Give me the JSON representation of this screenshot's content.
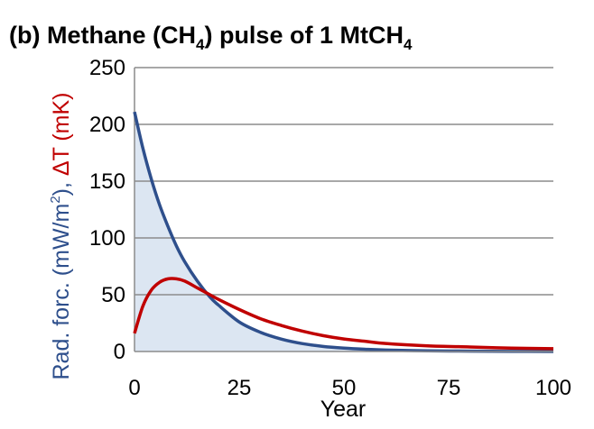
{
  "chart_data": {
    "type": "line",
    "title": {
      "prefix": "(b) Methane (CH",
      "sub1": "4",
      "middle": ") pulse of 1 MtCH",
      "sub2": "4"
    },
    "xlabel": "Year",
    "ylabel": {
      "part1": "Rad. forc. (mW/m",
      "sup": "2",
      "part2": "), ",
      "part3": "ΔT (mK)"
    },
    "xlim": [
      0,
      100
    ],
    "ylim": [
      0,
      250
    ],
    "x_ticks": [
      "0",
      "25",
      "50",
      "75",
      "100"
    ],
    "y_ticks": [
      "0",
      "50",
      "100",
      "150",
      "200",
      "250"
    ],
    "grid": "horizontal",
    "colors": {
      "forcing": "#2e4f8c",
      "temperature": "#c00000",
      "fill": "#dce6f2",
      "grid": "#8c8c8c"
    },
    "series": [
      {
        "key": "radiative_forcing",
        "filled": true,
        "x": [
          0,
          2,
          4,
          6,
          8,
          10,
          12,
          15,
          18,
          20,
          25,
          30,
          35,
          40,
          45,
          50,
          55,
          60,
          70,
          80,
          90,
          100
        ],
        "values": [
          211,
          179,
          152,
          129,
          110,
          93,
          79,
          62,
          48,
          41,
          26,
          17,
          11,
          7,
          4.5,
          3,
          2,
          1.3,
          0.6,
          0.3,
          0.1,
          0.05
        ]
      },
      {
        "key": "temperature_change",
        "filled": false,
        "x": [
          0,
          2,
          4,
          6,
          8,
          10,
          12,
          15,
          18,
          20,
          25,
          30,
          35,
          40,
          45,
          50,
          55,
          60,
          70,
          80,
          90,
          100
        ],
        "values": [
          16,
          40,
          54,
          61,
          64,
          64,
          62,
          56,
          50,
          46,
          37,
          29,
          23,
          18,
          14,
          11,
          9,
          7,
          5,
          4,
          3,
          2.5
        ]
      }
    ]
  }
}
